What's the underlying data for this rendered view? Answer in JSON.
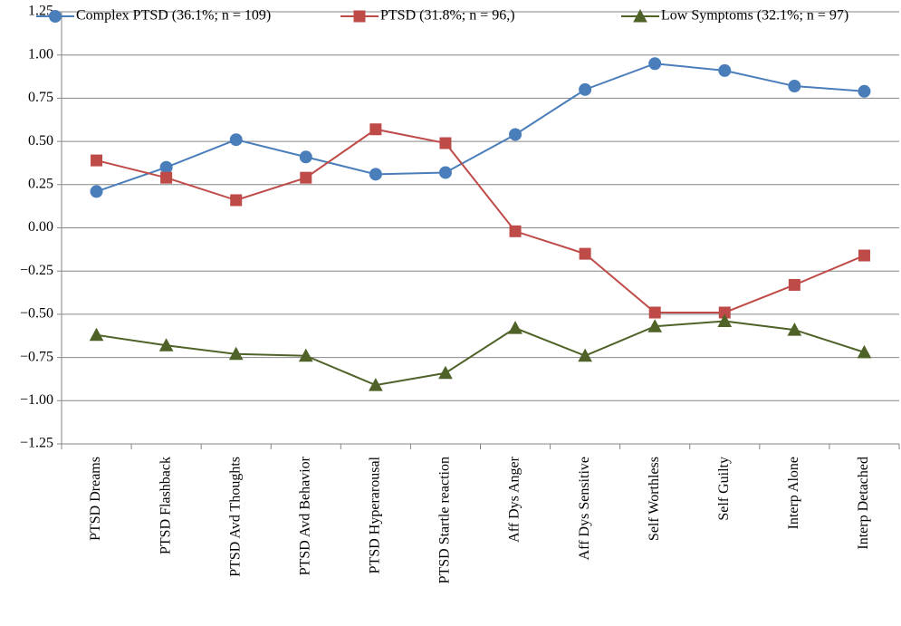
{
  "chart_data": {
    "type": "line",
    "categories": [
      "PTSD Dreams",
      "PTSD Flashback",
      "PTSD Avd Thoughts",
      "PTSD Avd Behavior",
      "PTSD Hyperarousal",
      "PTSD Startle reaction",
      "Aff Dys Anger",
      "Aff Dys Sensitive",
      "Self Worthless",
      "Self Guilty",
      "Interp Alone",
      "Interp Detached"
    ],
    "series": [
      {
        "name": "Complex PTSD (36.1%; n = 109)",
        "color": "#4a7ebb",
        "marker": "circle",
        "values": [
          0.21,
          0.35,
          0.51,
          0.41,
          0.31,
          0.32,
          0.54,
          0.8,
          0.95,
          0.91,
          0.82,
          0.79
        ]
      },
      {
        "name": "PTSD (31.8%; n = 96,)",
        "color": "#be4b48",
        "marker": "square",
        "values": [
          0.39,
          0.29,
          0.16,
          0.29,
          0.57,
          0.49,
          -0.02,
          -0.15,
          -0.49,
          -0.49,
          -0.33,
          -0.16
        ]
      },
      {
        "name": "Low Symptoms (32.1%; n = 97)",
        "color": "#4f6228",
        "marker": "triangle",
        "values": [
          -0.62,
          -0.68,
          -0.73,
          -0.74,
          -0.91,
          -0.84,
          -0.58,
          -0.74,
          -0.57,
          -0.54,
          -0.59,
          -0.72
        ]
      }
    ],
    "ylim": [
      -1.25,
      1.25
    ],
    "yticks": [
      {
        "value": -1.25,
        "label": "−1.25"
      },
      {
        "value": -1,
        "label": "−1.00"
      },
      {
        "value": -0.75,
        "label": "−0.75"
      },
      {
        "value": -0.5,
        "label": "−0.50"
      },
      {
        "value": -0.25,
        "label": "−0.25"
      },
      {
        "value": 0,
        "label": "0.00"
      },
      {
        "value": 0.25,
        "label": "0.25"
      },
      {
        "value": 0.5,
        "label": "0.50"
      },
      {
        "value": 0.75,
        "label": "0.75"
      },
      {
        "value": 1,
        "label": "1.00"
      },
      {
        "value": 1.25,
        "label": "1.25"
      }
    ],
    "grid": true,
    "legend": "top"
  }
}
